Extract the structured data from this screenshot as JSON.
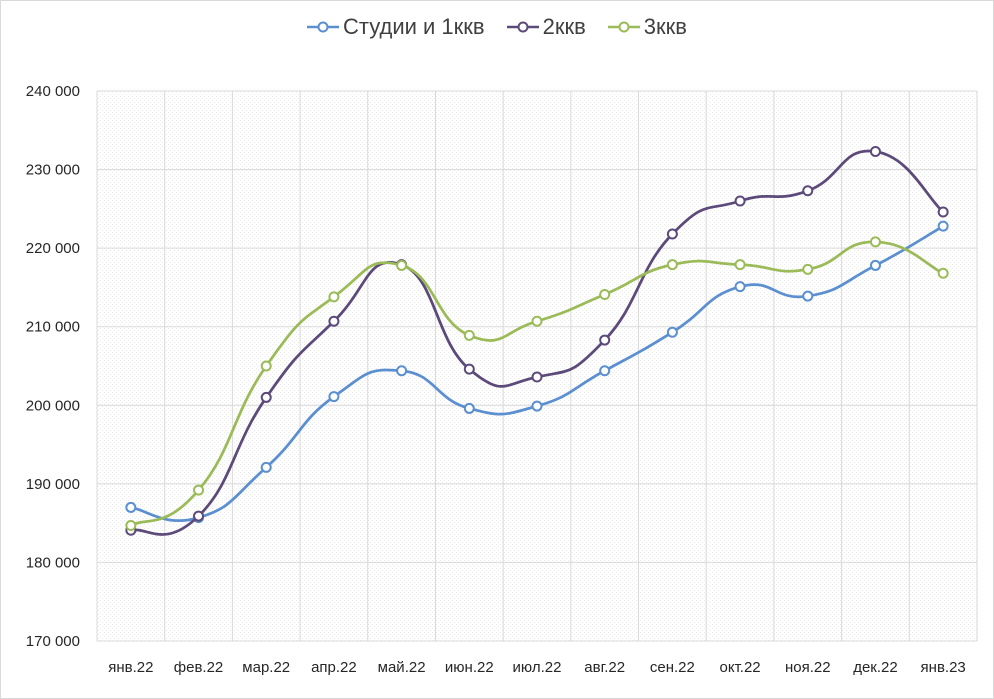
{
  "chart_data": {
    "type": "line",
    "smooth": true,
    "categories": [
      "янв.22",
      "фев.22",
      "мар.22",
      "апр.22",
      "май.22",
      "июн.22",
      "июл.22",
      "авг.22",
      "сен.22",
      "окт.22",
      "ноя.22",
      "дек.22",
      "янв.23"
    ],
    "series": [
      {
        "name": "Студии и 1ккв",
        "color": "#5b8fd0",
        "values": [
          187000,
          185700,
          192100,
          201100,
          204400,
          199600,
          199900,
          204400,
          209300,
          215100,
          213900,
          217800,
          222800
        ]
      },
      {
        "name": "2ккв",
        "color": "#5c4a7a",
        "values": [
          184100,
          185900,
          201000,
          210700,
          217900,
          204600,
          203600,
          208300,
          221800,
          226000,
          227300,
          232300,
          224600
        ]
      },
      {
        "name": "3ккв",
        "color": "#9bbb59",
        "values": [
          184700,
          189200,
          205000,
          213800,
          217800,
          208900,
          210700,
          214100,
          217900,
          217900,
          217300,
          220800,
          216800
        ]
      }
    ],
    "ylim": [
      170000,
      240000
    ],
    "yticks": [
      170000,
      180000,
      190000,
      200000,
      210000,
      220000,
      230000,
      240000
    ],
    "ytick_labels": [
      "170 000",
      "180 000",
      "190 000",
      "200 000",
      "210 000",
      "220 000",
      "230 000",
      "240 000"
    ],
    "grid": true,
    "legend": "top-center",
    "title": "",
    "xlabel": "",
    "ylabel": ""
  }
}
